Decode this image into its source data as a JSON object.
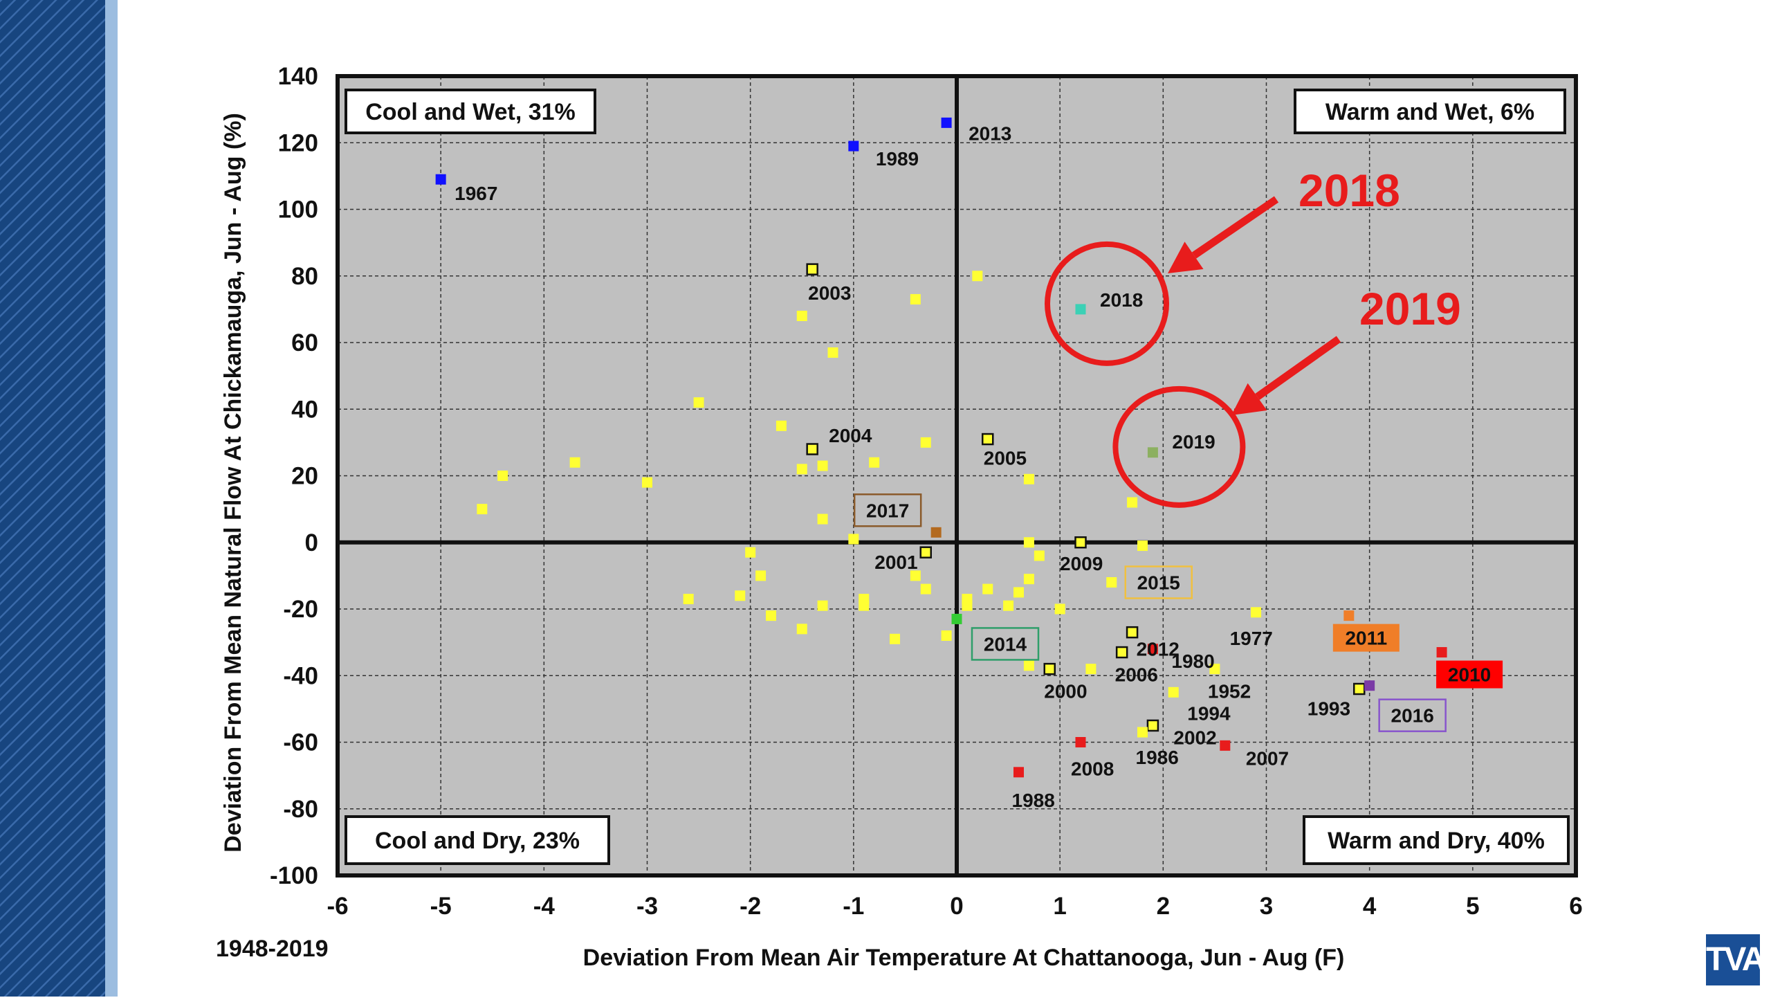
{
  "chart_data": {
    "type": "scatter",
    "xlabel": "Deviation From Mean Air Temperature At Chattanooga, Jun - Aug (F)",
    "ylabel": "Deviation From Mean Natural Flow At Chickamauga, Jun - Aug (%)",
    "xlim": [
      -6,
      6
    ],
    "ylim": [
      -100,
      140
    ],
    "xticks": [
      -6,
      -5,
      -4,
      -3,
      -2,
      -1,
      0,
      1,
      2,
      3,
      4,
      5,
      6
    ],
    "yticks": [
      140,
      120,
      100,
      80,
      60,
      40,
      20,
      0,
      -20,
      -40,
      -60,
      -80,
      -100
    ],
    "grid": true,
    "quadrants": [
      {
        "label": "Cool and Wet, 31%",
        "corner": "top-left"
      },
      {
        "label": "Warm and Wet, 6%",
        "corner": "top-right"
      },
      {
        "label": "Cool and Dry, 23%",
        "corner": "bottom-left"
      },
      {
        "label": "Warm and Dry, 40%",
        "corner": "bottom-right"
      }
    ],
    "colors": {
      "plot_bg": "#c0c0c0",
      "point": "#ffff33",
      "blue": "#1010ff",
      "red": "#e81c1c",
      "orange": "#f07e28",
      "green": "#33cc33",
      "sage": "#8cb060",
      "teal": "#3bd1b5",
      "purple": "#7b3aa6",
      "brown": "#b36a1f"
    },
    "points": [
      {
        "x": -5.0,
        "y": 109,
        "color": "blue",
        "label": "1967"
      },
      {
        "x": -1.0,
        "y": 119,
        "color": "blue",
        "label": "1989"
      },
      {
        "x": -0.1,
        "y": 126,
        "color": "blue",
        "label": "2013"
      },
      {
        "x": 1.2,
        "y": 70,
        "color": "teal",
        "label": "2018"
      },
      {
        "x": 1.9,
        "y": 27,
        "color": "sage",
        "label": "2019"
      },
      {
        "x": -1.4,
        "y": 82,
        "color": "yellow-outlined",
        "label": "2003"
      },
      {
        "x": -1.4,
        "y": 28,
        "color": "yellow-outlined",
        "label": "2004"
      },
      {
        "x": 0.3,
        "y": 31,
        "color": "yellow-outlined",
        "label": "2005"
      },
      {
        "x": -0.2,
        "y": 3,
        "color": "brown",
        "label": "2017"
      },
      {
        "x": -0.3,
        "y": -3,
        "color": "yellow-outlined",
        "label": "2001"
      },
      {
        "x": 1.2,
        "y": 0,
        "color": "yellow-outlined",
        "label": "2009"
      },
      {
        "x": 1.5,
        "y": -12,
        "color": "yellow",
        "label": "2015"
      },
      {
        "x": 1.7,
        "y": -27,
        "color": "yellow-outlined",
        "label": "2012"
      },
      {
        "x": 1.9,
        "y": -32,
        "color": "red",
        "label": "1980"
      },
      {
        "x": 2.9,
        "y": -21,
        "color": "yellow",
        "label": "1977"
      },
      {
        "x": 0.0,
        "y": -23,
        "color": "green",
        "label": "2014"
      },
      {
        "x": 1.6,
        "y": -33,
        "color": "yellow-outlined",
        "label": "2006"
      },
      {
        "x": 0.9,
        "y": -38,
        "color": "yellow-outlined",
        "label": "2000"
      },
      {
        "x": 2.5,
        "y": -38,
        "color": "yellow",
        "label": "1952"
      },
      {
        "x": 2.1,
        "y": -45,
        "color": "yellow",
        "label": "1994"
      },
      {
        "x": 3.8,
        "y": -22,
        "color": "orange",
        "label": "2011"
      },
      {
        "x": 4.7,
        "y": -33,
        "color": "red",
        "label": "2010"
      },
      {
        "x": 3.9,
        "y": -44,
        "color": "yellow-outlined",
        "label": "1993"
      },
      {
        "x": 4.0,
        "y": -43,
        "color": "purple",
        "label": "2016"
      },
      {
        "x": 1.2,
        "y": -60,
        "color": "red",
        "label": "2008"
      },
      {
        "x": 1.9,
        "y": -55,
        "color": "yellow-outlined",
        "label": "2002"
      },
      {
        "x": 1.8,
        "y": -57,
        "color": "yellow",
        "label": "1986"
      },
      {
        "x": 2.6,
        "y": -61,
        "color": "red",
        "label": "2007"
      },
      {
        "x": 0.6,
        "y": -69,
        "color": "red",
        "label": "1988"
      },
      {
        "x": 0.2,
        "y": 80,
        "color": "yellow"
      },
      {
        "x": -0.4,
        "y": 73,
        "color": "yellow"
      },
      {
        "x": -1.5,
        "y": 68,
        "color": "yellow"
      },
      {
        "x": -1.2,
        "y": 57,
        "color": "yellow"
      },
      {
        "x": -2.5,
        "y": 42,
        "color": "yellow"
      },
      {
        "x": -1.7,
        "y": 35,
        "color": "yellow"
      },
      {
        "x": -0.3,
        "y": 30,
        "color": "yellow"
      },
      {
        "x": -0.8,
        "y": 24,
        "color": "yellow"
      },
      {
        "x": -1.3,
        "y": 23,
        "color": "yellow"
      },
      {
        "x": -1.5,
        "y": 22,
        "color": "yellow"
      },
      {
        "x": -3.7,
        "y": 24,
        "color": "yellow"
      },
      {
        "x": -4.4,
        "y": 20,
        "color": "yellow"
      },
      {
        "x": -3.0,
        "y": 18,
        "color": "yellow"
      },
      {
        "x": -4.6,
        "y": 10,
        "color": "yellow"
      },
      {
        "x": 0.7,
        "y": 19,
        "color": "yellow"
      },
      {
        "x": 1.7,
        "y": 12,
        "color": "yellow"
      },
      {
        "x": -1.3,
        "y": 7,
        "color": "yellow"
      },
      {
        "x": -1.0,
        "y": 1,
        "color": "yellow"
      },
      {
        "x": 0.7,
        "y": 0,
        "color": "yellow"
      },
      {
        "x": 1.8,
        "y": -1,
        "color": "yellow"
      },
      {
        "x": 0.8,
        "y": -4,
        "color": "yellow"
      },
      {
        "x": -2.0,
        "y": -3,
        "color": "yellow"
      },
      {
        "x": -1.9,
        "y": -10,
        "color": "yellow"
      },
      {
        "x": -0.4,
        "y": -10,
        "color": "yellow"
      },
      {
        "x": -0.3,
        "y": -14,
        "color": "yellow"
      },
      {
        "x": 0.7,
        "y": -11,
        "color": "yellow"
      },
      {
        "x": 0.6,
        "y": -15,
        "color": "yellow"
      },
      {
        "x": 0.3,
        "y": -14,
        "color": "yellow"
      },
      {
        "x": -2.6,
        "y": -17,
        "color": "yellow"
      },
      {
        "x": -2.1,
        "y": -16,
        "color": "yellow"
      },
      {
        "x": -1.3,
        "y": -19,
        "color": "yellow"
      },
      {
        "x": -0.9,
        "y": -17,
        "color": "yellow"
      },
      {
        "x": -0.9,
        "y": -19,
        "color": "yellow"
      },
      {
        "x": 0.1,
        "y": -17,
        "color": "yellow"
      },
      {
        "x": 0.1,
        "y": -19,
        "color": "yellow"
      },
      {
        "x": 0.5,
        "y": -19,
        "color": "yellow"
      },
      {
        "x": 1.0,
        "y": -20,
        "color": "yellow"
      },
      {
        "x": -1.8,
        "y": -22,
        "color": "yellow"
      },
      {
        "x": -1.5,
        "y": -26,
        "color": "yellow"
      },
      {
        "x": -0.6,
        "y": -29,
        "color": "yellow"
      },
      {
        "x": -0.1,
        "y": -28,
        "color": "yellow"
      },
      {
        "x": 0.7,
        "y": -37,
        "color": "yellow"
      },
      {
        "x": 1.3,
        "y": -38,
        "color": "yellow"
      }
    ],
    "annotations": [
      {
        "text": "2018",
        "target": "2018"
      },
      {
        "text": "2019",
        "target": "2019"
      }
    ]
  },
  "footer": {
    "range_label": "1948-2019",
    "logo_text": "TVA"
  }
}
